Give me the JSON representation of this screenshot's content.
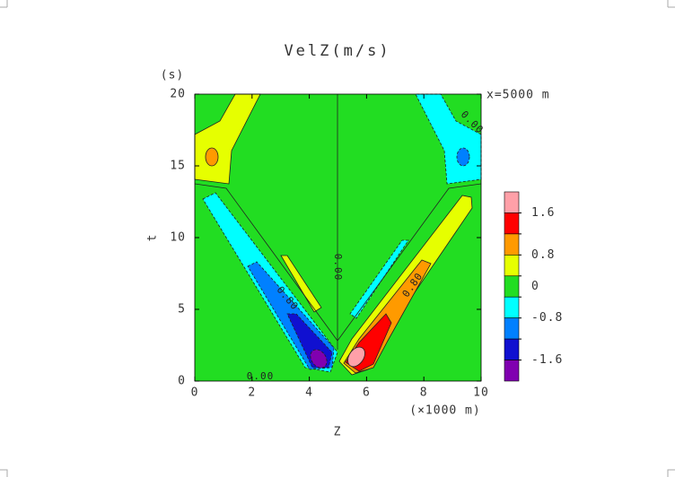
{
  "chart_data": {
    "type": "contour",
    "title": "VelZ(m/s)",
    "y_unit": "(s)",
    "annotation": "x=5000 m",
    "xlabel": "Z",
    "x_unit": "(×1000 m)",
    "ylabel": "t",
    "xlim": [
      0,
      10
    ],
    "xticks": [
      0,
      2,
      4,
      6,
      8,
      10
    ],
    "ylim": [
      0,
      20
    ],
    "yticks": [
      0,
      5,
      10,
      15,
      20
    ],
    "colorbar": {
      "levels": [
        1.6,
        1.2,
        0.8,
        0.4,
        -0.4,
        -0.8,
        -1.2,
        -1.6
      ],
      "colors": [
        "#ffa0a8",
        "#ff0000",
        "#ff9a00",
        "#e6ff00",
        "#22dd22",
        "#00ffff",
        "#0080ff",
        "#1010d0",
        "#8000b0"
      ],
      "ticks": [
        1.6,
        0.8,
        0.0,
        -0.8,
        -1.6
      ]
    },
    "contour_labels": [
      "0.00",
      "0.80",
      "0.00",
      "0.80",
      "0.00"
    ]
  }
}
